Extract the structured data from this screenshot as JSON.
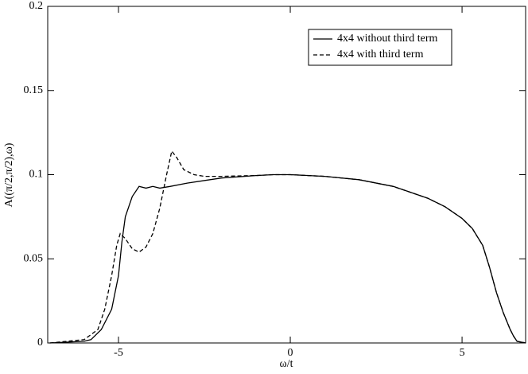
{
  "chart_data": {
    "type": "line",
    "xlabel": "ω/t",
    "ylabel": "A((π/2,π/2),ω)",
    "xlim": [
      -7.06,
      6.85
    ],
    "ylim": [
      0,
      0.2
    ],
    "xticks": [
      -5,
      0,
      5
    ],
    "yticks": [
      0,
      0.05,
      0.1,
      0.15,
      0.2
    ],
    "legend": "upper right",
    "series": [
      {
        "name": "4x4 without third term",
        "color": "#000000",
        "dash": "solid",
        "x": [
          -7,
          -6,
          -5.8,
          -5.5,
          -5.2,
          -5.0,
          -4.9,
          -4.8,
          -4.6,
          -4.4,
          -4.2,
          -4.0,
          -3.8,
          -3.5,
          -3.0,
          -2.0,
          -1.0,
          -0.5,
          0,
          1,
          2,
          3,
          4,
          4.5,
          5,
          5.3,
          5.6,
          5.8,
          6.0,
          6.2,
          6.4,
          6.5,
          6.6,
          6.85
        ],
        "values": [
          0,
          0.001,
          0.002,
          0.008,
          0.02,
          0.04,
          0.06,
          0.075,
          0.087,
          0.093,
          0.092,
          0.093,
          0.092,
          0.093,
          0.095,
          0.098,
          0.0995,
          0.1,
          0.1,
          0.099,
          0.097,
          0.093,
          0.086,
          0.081,
          0.074,
          0.068,
          0.058,
          0.045,
          0.03,
          0.018,
          0.008,
          0.004,
          0.001,
          0
        ]
      },
      {
        "name": "4x4 with third term",
        "color": "#000000",
        "dash": "dashed",
        "x": [
          -7,
          -6,
          -5.6,
          -5.4,
          -5.2,
          -5.05,
          -4.95,
          -4.8,
          -4.6,
          -4.4,
          -4.2,
          -4.0,
          -3.8,
          -3.6,
          -3.45,
          -3.3,
          -3.1,
          -2.8,
          -2.5,
          -2.0,
          -1.0,
          -0.5,
          0,
          1,
          2,
          3,
          4,
          4.5,
          5,
          5.3,
          5.6,
          5.8,
          6.0,
          6.2,
          6.4,
          6.5,
          6.6,
          6.85
        ],
        "values": [
          0,
          0.002,
          0.008,
          0.02,
          0.04,
          0.058,
          0.065,
          0.062,
          0.056,
          0.054,
          0.057,
          0.065,
          0.08,
          0.1,
          0.114,
          0.11,
          0.103,
          0.1,
          0.099,
          0.099,
          0.0995,
          0.1,
          0.1,
          0.099,
          0.097,
          0.093,
          0.086,
          0.081,
          0.074,
          0.068,
          0.058,
          0.045,
          0.03,
          0.018,
          0.008,
          0.004,
          0.001,
          0
        ]
      }
    ]
  }
}
